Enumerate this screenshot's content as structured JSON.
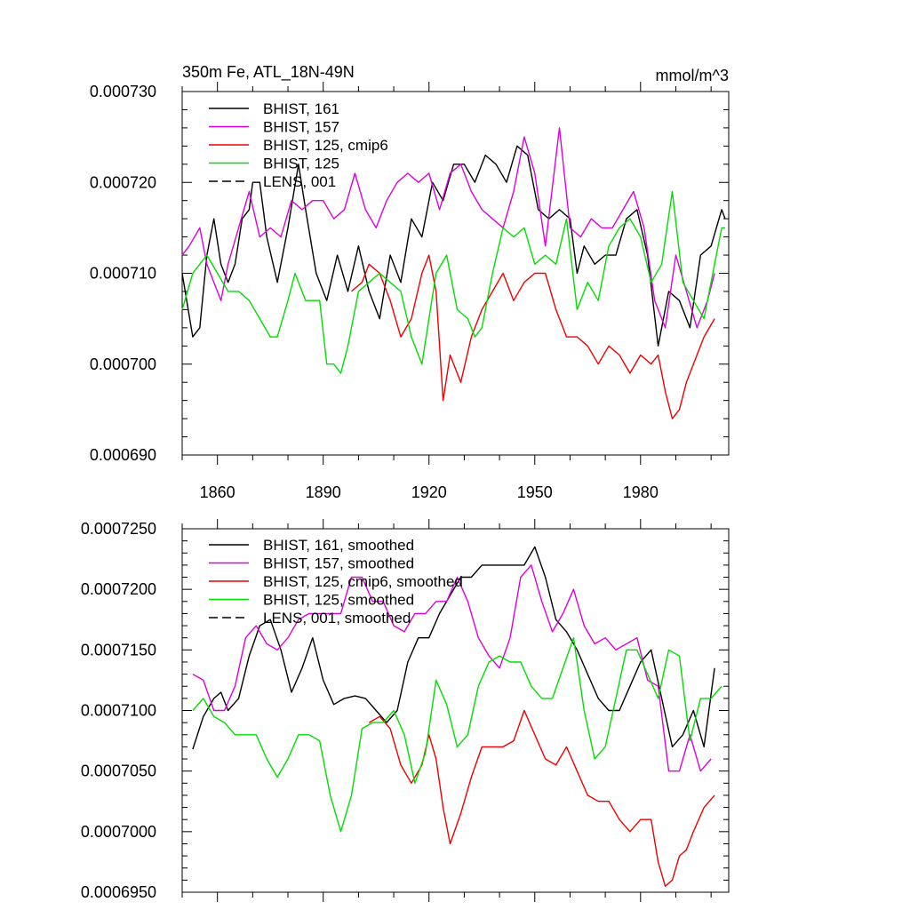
{
  "chart_data": [
    {
      "type": "line",
      "title": "350m Fe, ATL_18N-49N",
      "units": "mmol/m^3",
      "xlim": [
        1850,
        2005
      ],
      "ylim": [
        0.00069,
        0.00073
      ],
      "x_ticks": [
        1860,
        1890,
        1920,
        1950,
        1980
      ],
      "x_tick_labels": [
        "1860",
        "1890",
        "1920",
        "1950",
        "1980"
      ],
      "y_ticks": [
        0.00069,
        0.0007,
        0.00071,
        0.00072,
        0.00073
      ],
      "y_tick_labels": [
        "0.000690",
        "0.000700",
        "0.000710",
        "0.000720",
        "0.000730"
      ],
      "legend": [
        "BHIST, 161",
        "BHIST, 157",
        "BHIST, 125, cmip6",
        "BHIST, 125",
        "LENS, 001"
      ],
      "series": [
        {
          "name": "BHIST, 161",
          "color": "#000000",
          "x": [
            1850,
            1853,
            1855,
            1857,
            1859,
            1861,
            1863,
            1865,
            1867,
            1869,
            1870,
            1872,
            1874,
            1877,
            1880,
            1883,
            1885,
            1888,
            1891,
            1894,
            1897,
            1900,
            1903,
            1906,
            1909,
            1912,
            1915,
            1918,
            1921,
            1924,
            1927,
            1930,
            1933,
            1936,
            1939,
            1942,
            1945,
            1948,
            1951,
            1954,
            1957,
            1960,
            1962,
            1964,
            1967,
            1970,
            1973,
            1976,
            1979,
            1982,
            1985,
            1988,
            1991,
            1994,
            1997,
            2000,
            2003,
            2004
          ],
          "values": [
            0.00071,
            0.000703,
            0.000704,
            0.000712,
            0.000716,
            0.000711,
            0.000709,
            0.000711,
            0.000716,
            0.000717,
            0.00072,
            0.00072,
            0.000714,
            0.000709,
            0.000715,
            0.000722,
            0.000717,
            0.00071,
            0.000707,
            0.000712,
            0.000708,
            0.000713,
            0.000708,
            0.000705,
            0.000712,
            0.000709,
            0.000716,
            0.000714,
            0.00072,
            0.000718,
            0.000722,
            0.000722,
            0.00072,
            0.000723,
            0.000722,
            0.00072,
            0.000724,
            0.000723,
            0.000717,
            0.000716,
            0.000717,
            0.000716,
            0.00071,
            0.000713,
            0.000711,
            0.000712,
            0.000712,
            0.000716,
            0.000717,
            0.000712,
            0.000702,
            0.000708,
            0.000707,
            0.000704,
            0.000712,
            0.000713,
            0.000717,
            0.000716
          ]
        },
        {
          "name": "BHIST, 157",
          "color": "#dd00dd",
          "x": [
            1850,
            1852,
            1855,
            1857,
            1859,
            1861,
            1863,
            1866,
            1869,
            1872,
            1875,
            1878,
            1881,
            1884,
            1887,
            1890,
            1893,
            1896,
            1899,
            1902,
            1905,
            1908,
            1911,
            1914,
            1917,
            1920,
            1923,
            1926,
            1929,
            1932,
            1935,
            1938,
            1941,
            1944,
            1947,
            1950,
            1953,
            1957,
            1960,
            1963,
            1966,
            1969,
            1972,
            1975,
            1978,
            1981,
            1984,
            1987,
            1990,
            1993,
            1996,
            1999,
            2001
          ],
          "values": [
            0.000712,
            0.000713,
            0.000715,
            0.000711,
            0.000709,
            0.000707,
            0.000711,
            0.000715,
            0.000719,
            0.000714,
            0.000715,
            0.000714,
            0.000718,
            0.000717,
            0.000718,
            0.000718,
            0.000716,
            0.000717,
            0.000721,
            0.000717,
            0.000715,
            0.000718,
            0.00072,
            0.000721,
            0.00072,
            0.000721,
            0.000717,
            0.000721,
            0.000722,
            0.000719,
            0.000717,
            0.000716,
            0.000715,
            0.000719,
            0.000725,
            0.000721,
            0.000713,
            0.000726,
            0.000715,
            0.000714,
            0.000716,
            0.000715,
            0.000715,
            0.000717,
            0.000719,
            0.000715,
            0.000707,
            0.000704,
            0.000712,
            0.000708,
            0.000704,
            0.000707,
            0.00071
          ]
        },
        {
          "name": "BHIST, 125, cmip6",
          "color": "#ee0000",
          "x": [
            1898,
            1901,
            1903,
            1906,
            1909,
            1912,
            1915,
            1918,
            1920,
            1922,
            1924,
            1926,
            1929,
            1932,
            1935,
            1938,
            1941,
            1944,
            1947,
            1950,
            1953,
            1956,
            1959,
            1962,
            1965,
            1968,
            1971,
            1974,
            1977,
            1980,
            1983,
            1985,
            1987,
            1989,
            1991,
            1993,
            1995,
            1998,
            2001
          ],
          "values": [
            0.000708,
            0.000709,
            0.000711,
            0.00071,
            0.000707,
            0.000703,
            0.000705,
            0.00071,
            0.000712,
            0.000708,
            0.000696,
            0.000701,
            0.000698,
            0.000703,
            0.000706,
            0.000708,
            0.00071,
            0.000707,
            0.000709,
            0.00071,
            0.00071,
            0.000706,
            0.000703,
            0.000703,
            0.000702,
            0.0007,
            0.000702,
            0.000701,
            0.000699,
            0.000701,
            0.0007,
            0.000701,
            0.000697,
            0.000694,
            0.000695,
            0.000698,
            0.0007,
            0.000703,
            0.000705
          ]
        },
        {
          "name": "BHIST, 125",
          "color": "#00dd00",
          "x": [
            1850,
            1853,
            1855,
            1857,
            1860,
            1863,
            1866,
            1869,
            1872,
            1875,
            1877,
            1880,
            1882,
            1885,
            1887,
            1889,
            1891,
            1893,
            1895,
            1897,
            1900,
            1903,
            1906,
            1909,
            1912,
            1915,
            1918,
            1920,
            1922,
            1925,
            1928,
            1931,
            1933,
            1935,
            1938,
            1941,
            1944,
            1947,
            1950,
            1953,
            1956,
            1959,
            1962,
            1965,
            1968,
            1971,
            1974,
            1977,
            1980,
            1983,
            1986,
            1989,
            1992,
            1995,
            1998,
            2001,
            2003,
            2004
          ],
          "values": [
            0.000706,
            0.00071,
            0.000711,
            0.000712,
            0.00071,
            0.000708,
            0.000708,
            0.000707,
            0.000705,
            0.000703,
            0.000703,
            0.000707,
            0.00071,
            0.000707,
            0.000707,
            0.000707,
            0.0007,
            0.0007,
            0.000699,
            0.000702,
            0.000708,
            0.000709,
            0.00071,
            0.000709,
            0.000708,
            0.000703,
            0.0007,
            0.000705,
            0.00071,
            0.000712,
            0.000706,
            0.000705,
            0.000703,
            0.000704,
            0.00071,
            0.000715,
            0.000714,
            0.000715,
            0.000711,
            0.000712,
            0.000711,
            0.000716,
            0.000706,
            0.000709,
            0.000707,
            0.000713,
            0.000715,
            0.000716,
            0.000714,
            0.000709,
            0.000711,
            0.000719,
            0.000709,
            0.000707,
            0.000705,
            0.000711,
            0.000715,
            0.000715
          ]
        }
      ]
    },
    {
      "type": "line",
      "title": "",
      "units": "",
      "xlim": [
        1850,
        2005
      ],
      "ylim": [
        0.000695,
        0.000725
      ],
      "x_ticks": [
        1860,
        1890,
        1920,
        1950,
        1980
      ],
      "x_tick_labels": [
        "",
        "",
        "",
        "",
        ""
      ],
      "y_ticks": [
        0.000695,
        0.0007,
        0.000705,
        0.00071,
        0.000715,
        0.00072,
        0.000725
      ],
      "y_tick_labels": [
        "0.0006950",
        "0.0007000",
        "0.0007050",
        "0.0007100",
        "0.0007150",
        "0.0007200",
        "0.0007250"
      ],
      "legend": [
        "BHIST, 161, smoothed",
        "BHIST, 157, smoothed",
        "BHIST, 125, cmip6, smoothed",
        "BHIST, 125, smoothed",
        "LENS, 001, smoothed"
      ],
      "series": [
        {
          "name": "BHIST, 161, smoothed",
          "color": "#000000",
          "x": [
            1853,
            1856,
            1859,
            1861,
            1863,
            1866,
            1869,
            1872,
            1875,
            1878,
            1881,
            1884,
            1887,
            1890,
            1893,
            1896,
            1899,
            1902,
            1905,
            1908,
            1911,
            1914,
            1917,
            1920,
            1923,
            1926,
            1929,
            1932,
            1935,
            1938,
            1941,
            1944,
            1947,
            1950,
            1953,
            1956,
            1959,
            1962,
            1965,
            1968,
            1971,
            1974,
            1977,
            1980,
            1983,
            1986,
            1989,
            1992,
            1995,
            1998,
            2001
          ],
          "values": [
            0.0007068,
            0.0007095,
            0.000711,
            0.0007115,
            0.00071,
            0.000711,
            0.0007145,
            0.000717,
            0.0007175,
            0.000715,
            0.0007115,
            0.0007135,
            0.000716,
            0.0007125,
            0.0007105,
            0.000711,
            0.0007112,
            0.000711,
            0.00071,
            0.000709,
            0.00071,
            0.000714,
            0.000716,
            0.000716,
            0.000718,
            0.0007195,
            0.000721,
            0.000721,
            0.000722,
            0.000722,
            0.000722,
            0.000722,
            0.000722,
            0.0007235,
            0.000721,
            0.0007175,
            0.0007165,
            0.000715,
            0.000713,
            0.000711,
            0.00071,
            0.00071,
            0.000712,
            0.000714,
            0.000715,
            0.000711,
            0.000707,
            0.000708,
            0.00071,
            0.000707,
            0.0007135
          ]
        },
        {
          "name": "BHIST, 157, smoothed",
          "color": "#dd00dd",
          "x": [
            1853,
            1856,
            1859,
            1862,
            1865,
            1868,
            1871,
            1874,
            1877,
            1880,
            1883,
            1886,
            1889,
            1892,
            1895,
            1898,
            1901,
            1904,
            1907,
            1910,
            1913,
            1916,
            1919,
            1922,
            1925,
            1928,
            1931,
            1934,
            1937,
            1940,
            1943,
            1946,
            1949,
            1952,
            1955,
            1958,
            1961,
            1964,
            1967,
            1970,
            1973,
            1976,
            1979,
            1982,
            1985,
            1988,
            1991,
            1994,
            1997,
            2000
          ],
          "values": [
            0.000713,
            0.0007125,
            0.00071,
            0.00071,
            0.000712,
            0.000716,
            0.000717,
            0.0007155,
            0.000715,
            0.000716,
            0.0007175,
            0.000718,
            0.000718,
            0.000718,
            0.000718,
            0.000721,
            0.000721,
            0.000719,
            0.000719,
            0.000717,
            0.0007165,
            0.000718,
            0.000718,
            0.000719,
            0.000719,
            0.000721,
            0.000719,
            0.000716,
            0.0007145,
            0.0007135,
            0.000716,
            0.000721,
            0.000722,
            0.000719,
            0.0007165,
            0.000718,
            0.00072,
            0.000717,
            0.0007155,
            0.000716,
            0.000715,
            0.0007155,
            0.000716,
            0.0007125,
            0.000712,
            0.000705,
            0.000705,
            0.000708,
            0.000705,
            0.000706
          ]
        },
        {
          "name": "BHIST, 125, cmip6, smoothed",
          "color": "#ee0000",
          "x": [
            1903,
            1906,
            1909,
            1912,
            1915,
            1918,
            1920,
            1922,
            1924,
            1926,
            1929,
            1932,
            1935,
            1938,
            1941,
            1944,
            1947,
            1950,
            1953,
            1956,
            1959,
            1962,
            1965,
            1968,
            1971,
            1974,
            1977,
            1980,
            1983,
            1985,
            1987,
            1989,
            1991,
            1993,
            1995,
            1998,
            2001
          ],
          "values": [
            0.000709,
            0.0007095,
            0.0007085,
            0.0007055,
            0.000704,
            0.0007055,
            0.000708,
            0.000706,
            0.000702,
            0.000699,
            0.0007015,
            0.0007045,
            0.000707,
            0.000707,
            0.000707,
            0.0007075,
            0.00071,
            0.000708,
            0.000706,
            0.0007055,
            0.000707,
            0.000705,
            0.000703,
            0.0007025,
            0.0007025,
            0.000701,
            0.0007,
            0.000701,
            0.000701,
            0.0006975,
            0.0006955,
            0.000696,
            0.000698,
            0.0006985,
            0.0007,
            0.000702,
            0.000703
          ]
        },
        {
          "name": "BHIST, 125, smoothed",
          "color": "#00dd00",
          "x": [
            1853,
            1856,
            1859,
            1862,
            1865,
            1868,
            1871,
            1874,
            1877,
            1880,
            1883,
            1886,
            1889,
            1892,
            1895,
            1898,
            1901,
            1904,
            1907,
            1910,
            1913,
            1916,
            1919,
            1922,
            1925,
            1928,
            1931,
            1934,
            1937,
            1940,
            1943,
            1946,
            1949,
            1952,
            1955,
            1958,
            1961,
            1964,
            1967,
            1970,
            1973,
            1976,
            1979,
            1982,
            1985,
            1988,
            1991,
            1994,
            1997,
            2000,
            2003
          ],
          "values": [
            0.00071,
            0.000711,
            0.0007095,
            0.000709,
            0.000708,
            0.000708,
            0.000708,
            0.000706,
            0.0007045,
            0.000706,
            0.000708,
            0.000708,
            0.0007075,
            0.000703,
            0.0007,
            0.000703,
            0.0007085,
            0.000709,
            0.000709,
            0.00071,
            0.000708,
            0.000704,
            0.0007065,
            0.0007125,
            0.0007105,
            0.000707,
            0.000708,
            0.000712,
            0.000714,
            0.0007145,
            0.000714,
            0.000714,
            0.000712,
            0.000711,
            0.000711,
            0.0007135,
            0.000716,
            0.00071,
            0.000706,
            0.000707,
            0.000711,
            0.000715,
            0.000715,
            0.000713,
            0.000711,
            0.000715,
            0.0007145,
            0.0007075,
            0.000711,
            0.000711,
            0.000712
          ]
        }
      ]
    }
  ]
}
